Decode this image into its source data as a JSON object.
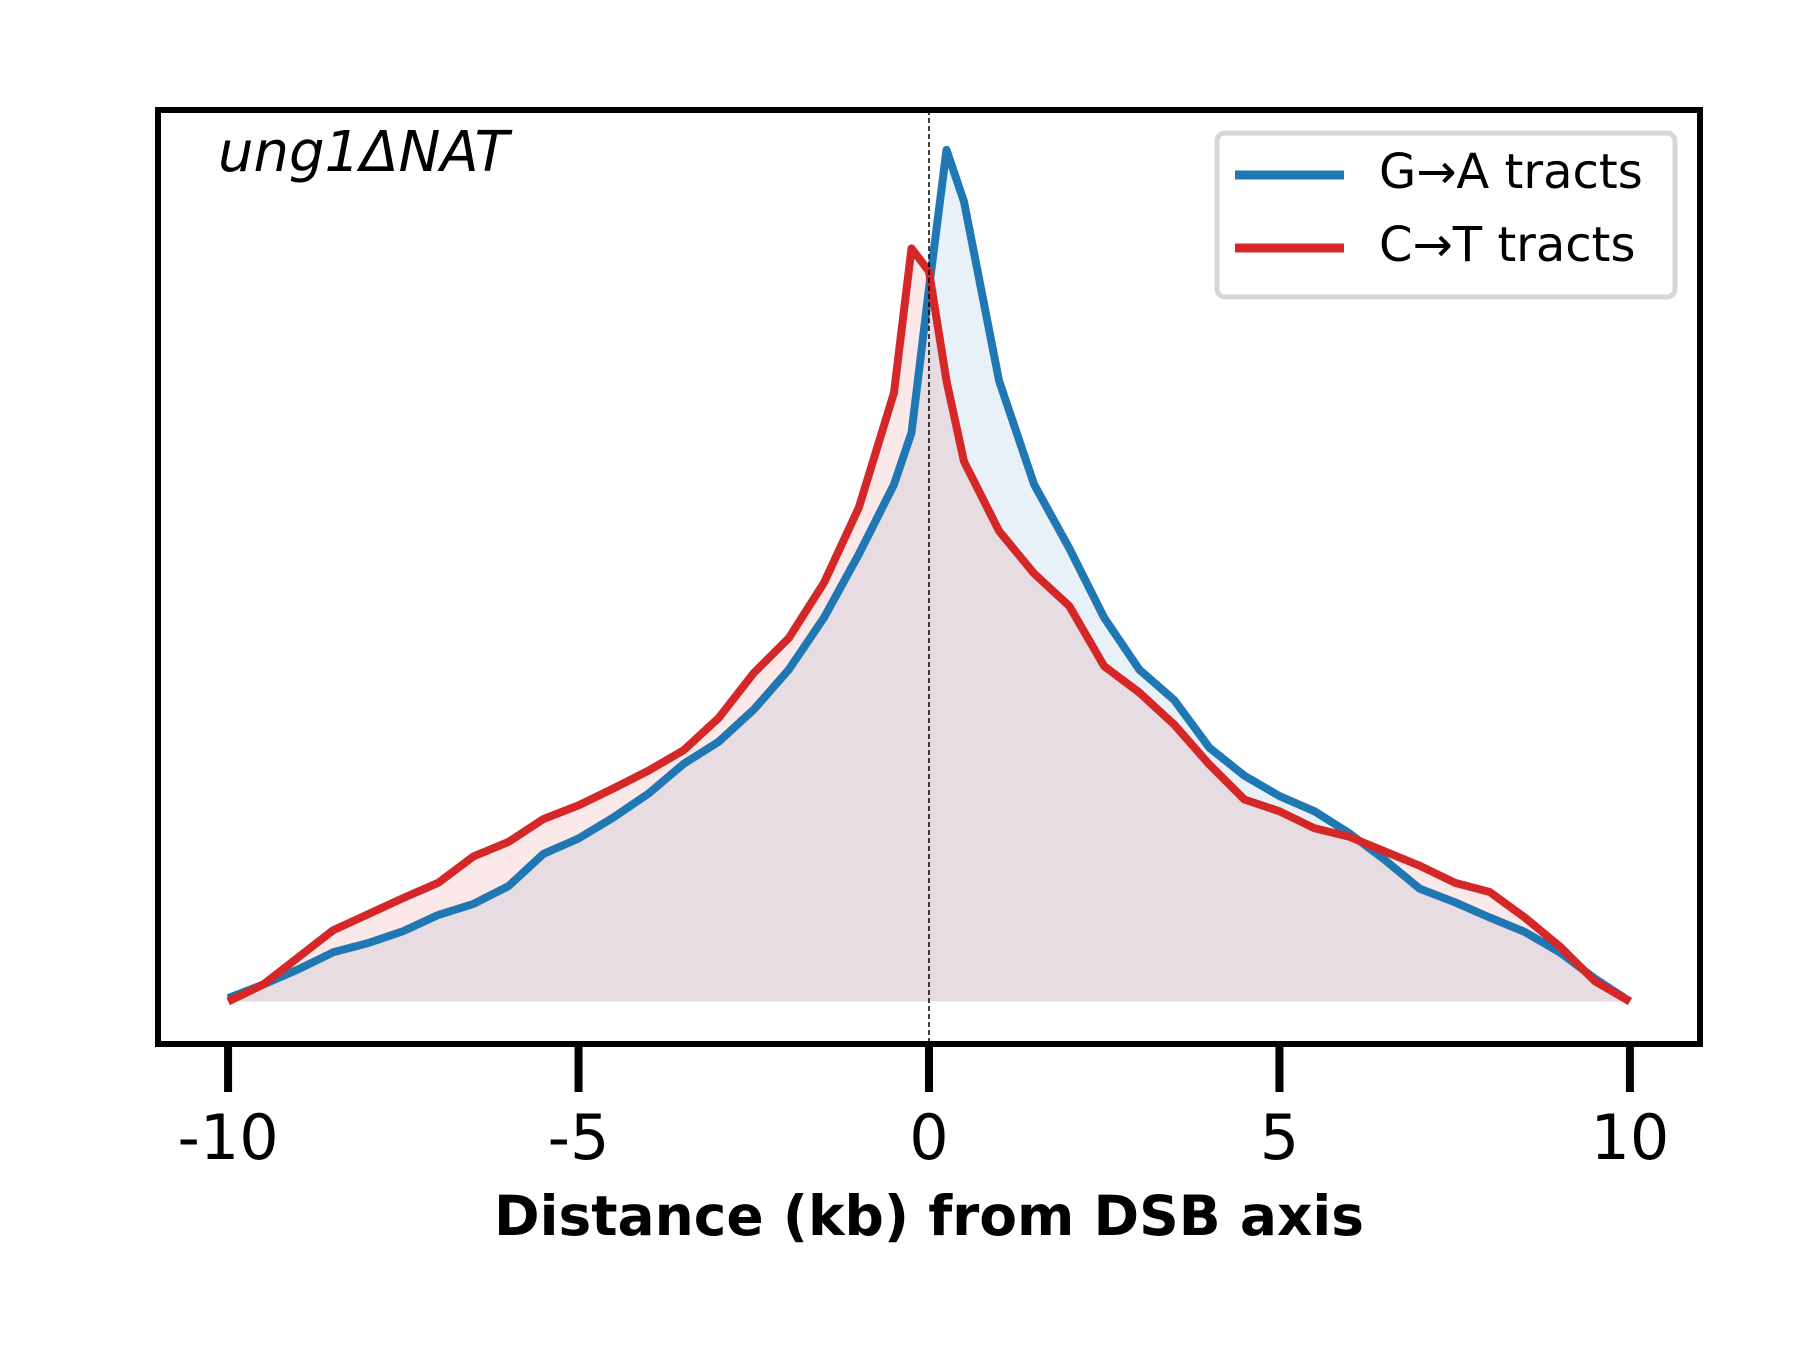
{
  "chart_data": {
    "type": "line",
    "annotation": "ung1ΔNAT",
    "xlabel": "Distance (kb) from DSB axis",
    "x": [
      -10,
      -9.5,
      -9,
      -8.5,
      -8,
      -7.5,
      -7,
      -6.5,
      -6,
      -5.5,
      -5,
      -4.5,
      -4,
      -3.5,
      -3,
      -2.5,
      -2,
      -1.5,
      -1,
      -0.5,
      -0.25,
      0,
      0.25,
      0.5,
      1,
      1.5,
      2,
      2.5,
      3,
      3.5,
      4,
      4.5,
      5,
      5.5,
      6,
      6.5,
      7,
      7.5,
      8,
      8.5,
      9,
      9.5,
      10
    ],
    "series": [
      {
        "name": "G→A tracts",
        "color": "#1f77b4",
        "values": [
          0.004,
          0.02,
          0.038,
          0.058,
          0.069,
          0.083,
          0.102,
          0.115,
          0.136,
          0.174,
          0.192,
          0.217,
          0.245,
          0.28,
          0.306,
          0.344,
          0.391,
          0.452,
          0.527,
          0.609,
          0.67,
          0.84,
          1.003,
          0.942,
          0.731,
          0.609,
          0.534,
          0.452,
          0.391,
          0.355,
          0.299,
          0.266,
          0.242,
          0.224,
          0.198,
          0.167,
          0.133,
          0.117,
          0.099,
          0.082,
          0.058,
          0.027,
          0.0
        ]
      },
      {
        "name": "C→T tracts",
        "color": "#d62728",
        "values": [
          0.0,
          0.02,
          0.052,
          0.084,
          0.103,
          0.122,
          0.14,
          0.171,
          0.188,
          0.215,
          0.231,
          0.251,
          0.272,
          0.296,
          0.334,
          0.387,
          0.428,
          0.493,
          0.582,
          0.717,
          0.887,
          0.86,
          0.731,
          0.636,
          0.554,
          0.504,
          0.466,
          0.395,
          0.364,
          0.326,
          0.279,
          0.238,
          0.224,
          0.204,
          0.194,
          0.177,
          0.16,
          0.14,
          0.129,
          0.099,
          0.065,
          0.024,
          0.0
        ]
      }
    ],
    "xlim": [
      -11,
      11
    ],
    "xticks": [
      -10,
      -5,
      0,
      5,
      10
    ],
    "ylim": [
      -0.05,
      1.05
    ],
    "vline": 0,
    "legend": "upper right",
    "fill": true
  }
}
